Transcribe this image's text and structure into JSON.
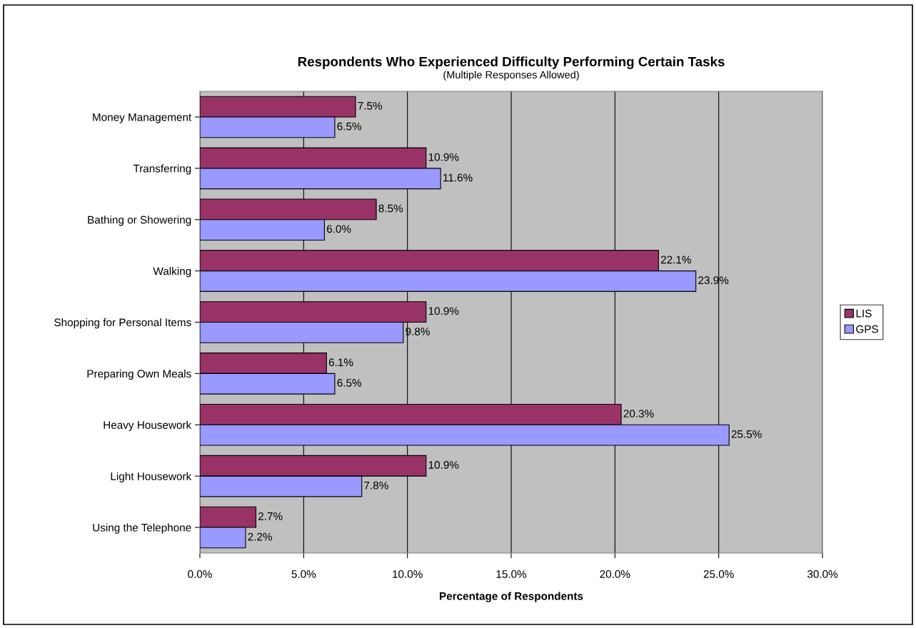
{
  "chart_data": {
    "type": "bar",
    "orientation": "horizontal",
    "title": "Respondents Who Experienced Difficulty Performing Certain Tasks",
    "subtitle": "(Multiple Responses Allowed)",
    "xlabel": "Percentage of Respondents",
    "categories": [
      "Money Management",
      "Transferring",
      "Bathing or Showering",
      "Walking",
      "Shopping for Personal Items",
      "Preparing Own Meals",
      "Heavy Housework",
      "Light Housework",
      "Using the Telephone"
    ],
    "series": [
      {
        "name": "LIS",
        "color": "#993366",
        "values": [
          7.5,
          10.9,
          8.5,
          22.1,
          10.9,
          6.1,
          20.3,
          10.9,
          2.7
        ],
        "value_labels": [
          "7.5%",
          "10.9%",
          "8.5%",
          "22.1%",
          "10.9%",
          "6.1%",
          "20.3%",
          "10.9%",
          "2.7%"
        ]
      },
      {
        "name": "GPS",
        "color": "#9999ff",
        "values": [
          6.5,
          11.6,
          6.0,
          23.9,
          9.8,
          6.5,
          25.5,
          7.8,
          2.2
        ],
        "value_labels": [
          "6.5%",
          "11.6%",
          "6.0%",
          "23.9%",
          "9.8%",
          "6.5%",
          "25.5%",
          "7.8%",
          "2.2%"
        ]
      }
    ],
    "xlim": [
      0,
      30
    ],
    "xticks": [
      {
        "value": 0,
        "label": "0.0%"
      },
      {
        "value": 5,
        "label": "5.0%"
      },
      {
        "value": 10,
        "label": "10.0%"
      },
      {
        "value": 15,
        "label": "15.0%"
      },
      {
        "value": 20,
        "label": "20.0%"
      },
      {
        "value": 25,
        "label": "25.0%"
      },
      {
        "value": 30,
        "label": "30.0%"
      }
    ],
    "grid": "x",
    "legend": "right"
  }
}
